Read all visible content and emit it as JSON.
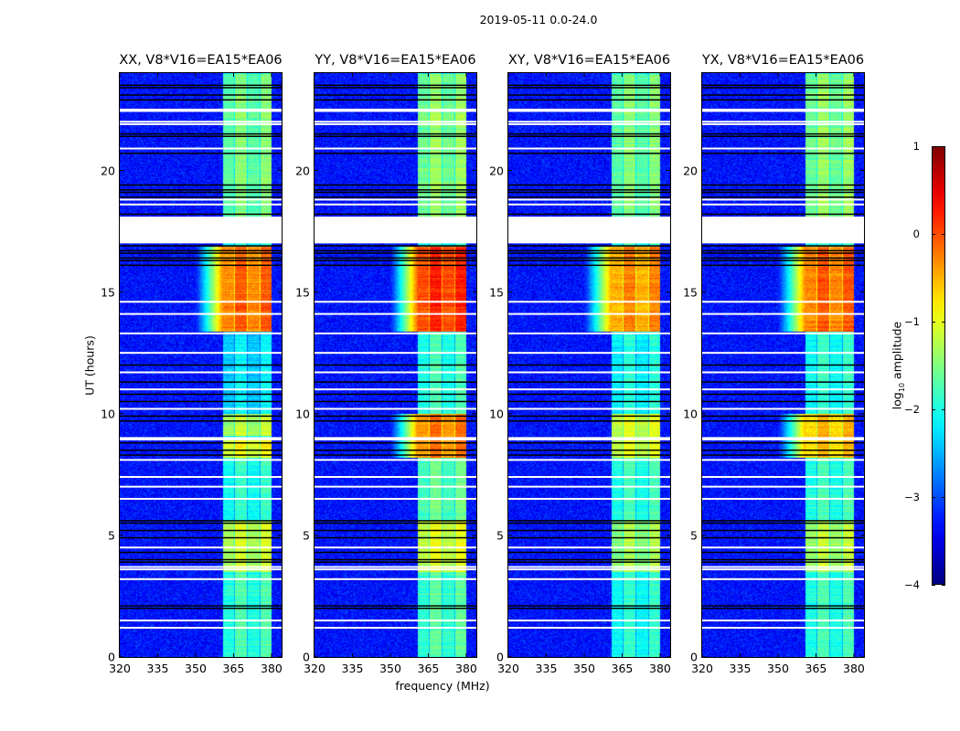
{
  "chart_data": {
    "type": "heatmap",
    "title": "2019-05-11 0.0-24.0",
    "xlabel": "frequency (MHz)",
    "ylabel": "UT (hours)",
    "xlim": [
      320,
      384
    ],
    "ylim": [
      0,
      24
    ],
    "xticks": [
      320,
      335,
      350,
      365,
      380
    ],
    "xtick_labels": [
      "320",
      "335",
      "350",
      "365",
      "380"
    ],
    "yticks": [
      0,
      5,
      10,
      15,
      20
    ],
    "ytick_labels": [
      "0",
      "5",
      "10",
      "15",
      "20"
    ],
    "background_level": -3.3,
    "band_subbands_mhz": [
      [
        360.5,
        365
      ],
      [
        365.5,
        370
      ],
      [
        370.5,
        375
      ],
      [
        375.5,
        380
      ]
    ],
    "flagged_gap_hours": [
      17.0,
      18.1
    ],
    "white_flag_rows_hours": [
      22.5,
      22.0,
      21.9,
      20.9,
      18.8,
      18.6,
      14.6,
      14.1,
      13.3,
      12.5,
      11.7,
      11.0,
      10.2,
      9.0,
      8.1,
      7.4,
      7.0,
      6.5,
      4.5,
      3.7,
      3.6,
      3.2,
      1.5,
      1.2
    ],
    "black_flag_rows_hours": [
      23.5,
      23.4,
      23.1,
      22.9,
      21.5,
      21.4,
      20.7,
      19.4,
      19.2,
      19.1,
      18.9,
      18.2,
      16.9,
      16.7,
      16.6,
      16.4,
      16.3,
      16.1,
      12.0,
      11.3,
      10.8,
      10.5,
      9.9,
      9.7,
      8.8,
      8.5,
      8.3,
      5.6,
      5.5,
      5.2,
      4.9,
      4.3,
      4.0,
      3.9,
      2.1,
      2.0
    ],
    "panels": [
      {
        "title": "XX, V8*V16=EA15*EA06",
        "band_levels": [
          {
            "t0": 0,
            "t1": 3.5,
            "level": -1.9
          },
          {
            "t0": 3.5,
            "t1": 5.6,
            "level": -1.2
          },
          {
            "t0": 5.6,
            "t1": 8.2,
            "level": -2.0
          },
          {
            "t0": 8.2,
            "t1": 9.0,
            "level": -1.0
          },
          {
            "t0": 9.1,
            "t1": 10.0,
            "level": -1.3
          },
          {
            "t0": 10.0,
            "t1": 13.4,
            "level": -2.3
          },
          {
            "t0": 13.4,
            "t1": 16.9,
            "level": -0.2
          },
          {
            "t0": 18.1,
            "t1": 24,
            "level": -1.6
          }
        ]
      },
      {
        "title": "YY, V8*V16=EA15*EA06",
        "band_levels": [
          {
            "t0": 0,
            "t1": 3.5,
            "level": -1.8
          },
          {
            "t0": 3.5,
            "t1": 5.6,
            "level": -1.1
          },
          {
            "t0": 5.6,
            "t1": 8.2,
            "level": -1.7
          },
          {
            "t0": 8.2,
            "t1": 10.0,
            "level": -0.3
          },
          {
            "t0": 10.0,
            "t1": 13.4,
            "level": -1.9
          },
          {
            "t0": 13.4,
            "t1": 16.9,
            "level": 0.1
          },
          {
            "t0": 18.1,
            "t1": 24,
            "level": -1.5
          }
        ]
      },
      {
        "title": "XY, V8*V16=EA15*EA06",
        "band_levels": [
          {
            "t0": 0,
            "t1": 3.5,
            "level": -2.0
          },
          {
            "t0": 3.5,
            "t1": 5.6,
            "level": -1.4
          },
          {
            "t0": 5.6,
            "t1": 8.2,
            "level": -1.9
          },
          {
            "t0": 8.2,
            "t1": 10.0,
            "level": -1.1
          },
          {
            "t0": 10.0,
            "t1": 13.4,
            "level": -2.1
          },
          {
            "t0": 13.4,
            "t1": 16.9,
            "level": -0.4
          },
          {
            "t0": 18.1,
            "t1": 24,
            "level": -1.6
          }
        ]
      },
      {
        "title": "YX, V8*V16=EA15*EA06",
        "band_levels": [
          {
            "t0": 0,
            "t1": 3.5,
            "level": -1.9
          },
          {
            "t0": 3.5,
            "t1": 5.6,
            "level": -1.3
          },
          {
            "t0": 5.6,
            "t1": 8.2,
            "level": -1.9
          },
          {
            "t0": 8.2,
            "t1": 10.0,
            "level": -0.6
          },
          {
            "t0": 10.0,
            "t1": 13.4,
            "level": -2.0
          },
          {
            "t0": 13.4,
            "t1": 16.9,
            "level": -0.2
          },
          {
            "t0": 18.1,
            "t1": 24,
            "level": -1.5
          }
        ]
      }
    ],
    "colorbar": {
      "label_prefix": "log",
      "label_sub": "10",
      "label_suffix": " amplitude",
      "range": [
        -4,
        1
      ],
      "colormap": "jet",
      "ticks": [
        1,
        0,
        -1,
        -2,
        -3,
        -4
      ],
      "tick_labels": [
        "1",
        "0",
        "−1",
        "−2",
        "−3",
        "−4"
      ]
    }
  }
}
